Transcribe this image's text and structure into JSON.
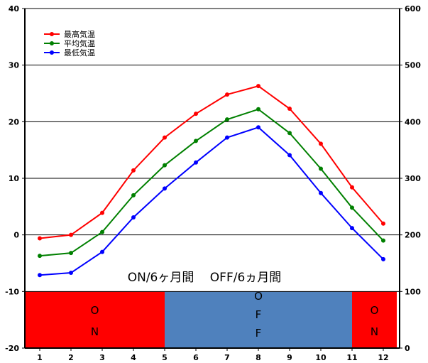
{
  "chart_data": {
    "type": "line",
    "title": "",
    "xlabel": "",
    "ylabel": "",
    "categories": [
      "1",
      "2",
      "3",
      "4",
      "5",
      "6",
      "7",
      "8",
      "9",
      "10",
      "11",
      "12"
    ],
    "ylim": [
      -20,
      40
    ],
    "y2lim": [
      0,
      600
    ],
    "yticks": [
      "-20",
      "-10",
      "0",
      "10",
      "20",
      "30",
      "40"
    ],
    "y2ticks": [
      "0",
      "100",
      "200",
      "300",
      "400",
      "500",
      "600"
    ],
    "grid": "horizontal",
    "legend_position": "top-left",
    "series": [
      {
        "name": "最高気温",
        "color": "#ff0000",
        "values": [
          -0.6,
          0.0,
          3.9,
          11.4,
          17.2,
          21.4,
          24.8,
          26.3,
          22.3,
          16.1,
          8.4,
          2.0
        ]
      },
      {
        "name": "平均気温",
        "color": "#008000",
        "values": [
          -3.7,
          -3.2,
          0.5,
          7.0,
          12.3,
          16.6,
          20.4,
          22.2,
          18.0,
          11.7,
          4.8,
          -1.0
        ]
      },
      {
        "name": "最低気温",
        "color": "#0000ff",
        "values": [
          -7.1,
          -6.7,
          -3.0,
          3.1,
          8.2,
          12.8,
          17.2,
          19.0,
          14.1,
          7.4,
          1.2,
          -4.3
        ]
      }
    ],
    "bands": [
      {
        "from_month": 0.5,
        "to_month": 5,
        "color": "#ff0000",
        "label": [
          "O",
          "N"
        ]
      },
      {
        "from_month": 5,
        "to_month": 11,
        "color": "#4f81bd",
        "label": [
          "O",
          "F",
          "F"
        ]
      },
      {
        "from_month": 11,
        "to_month": 12.5,
        "color": "#ff0000",
        "label": [
          "O",
          "N"
        ]
      }
    ],
    "band_top_value": -10,
    "caption": "ON/6ヶ月間　 OFF/6ヵ月間"
  }
}
